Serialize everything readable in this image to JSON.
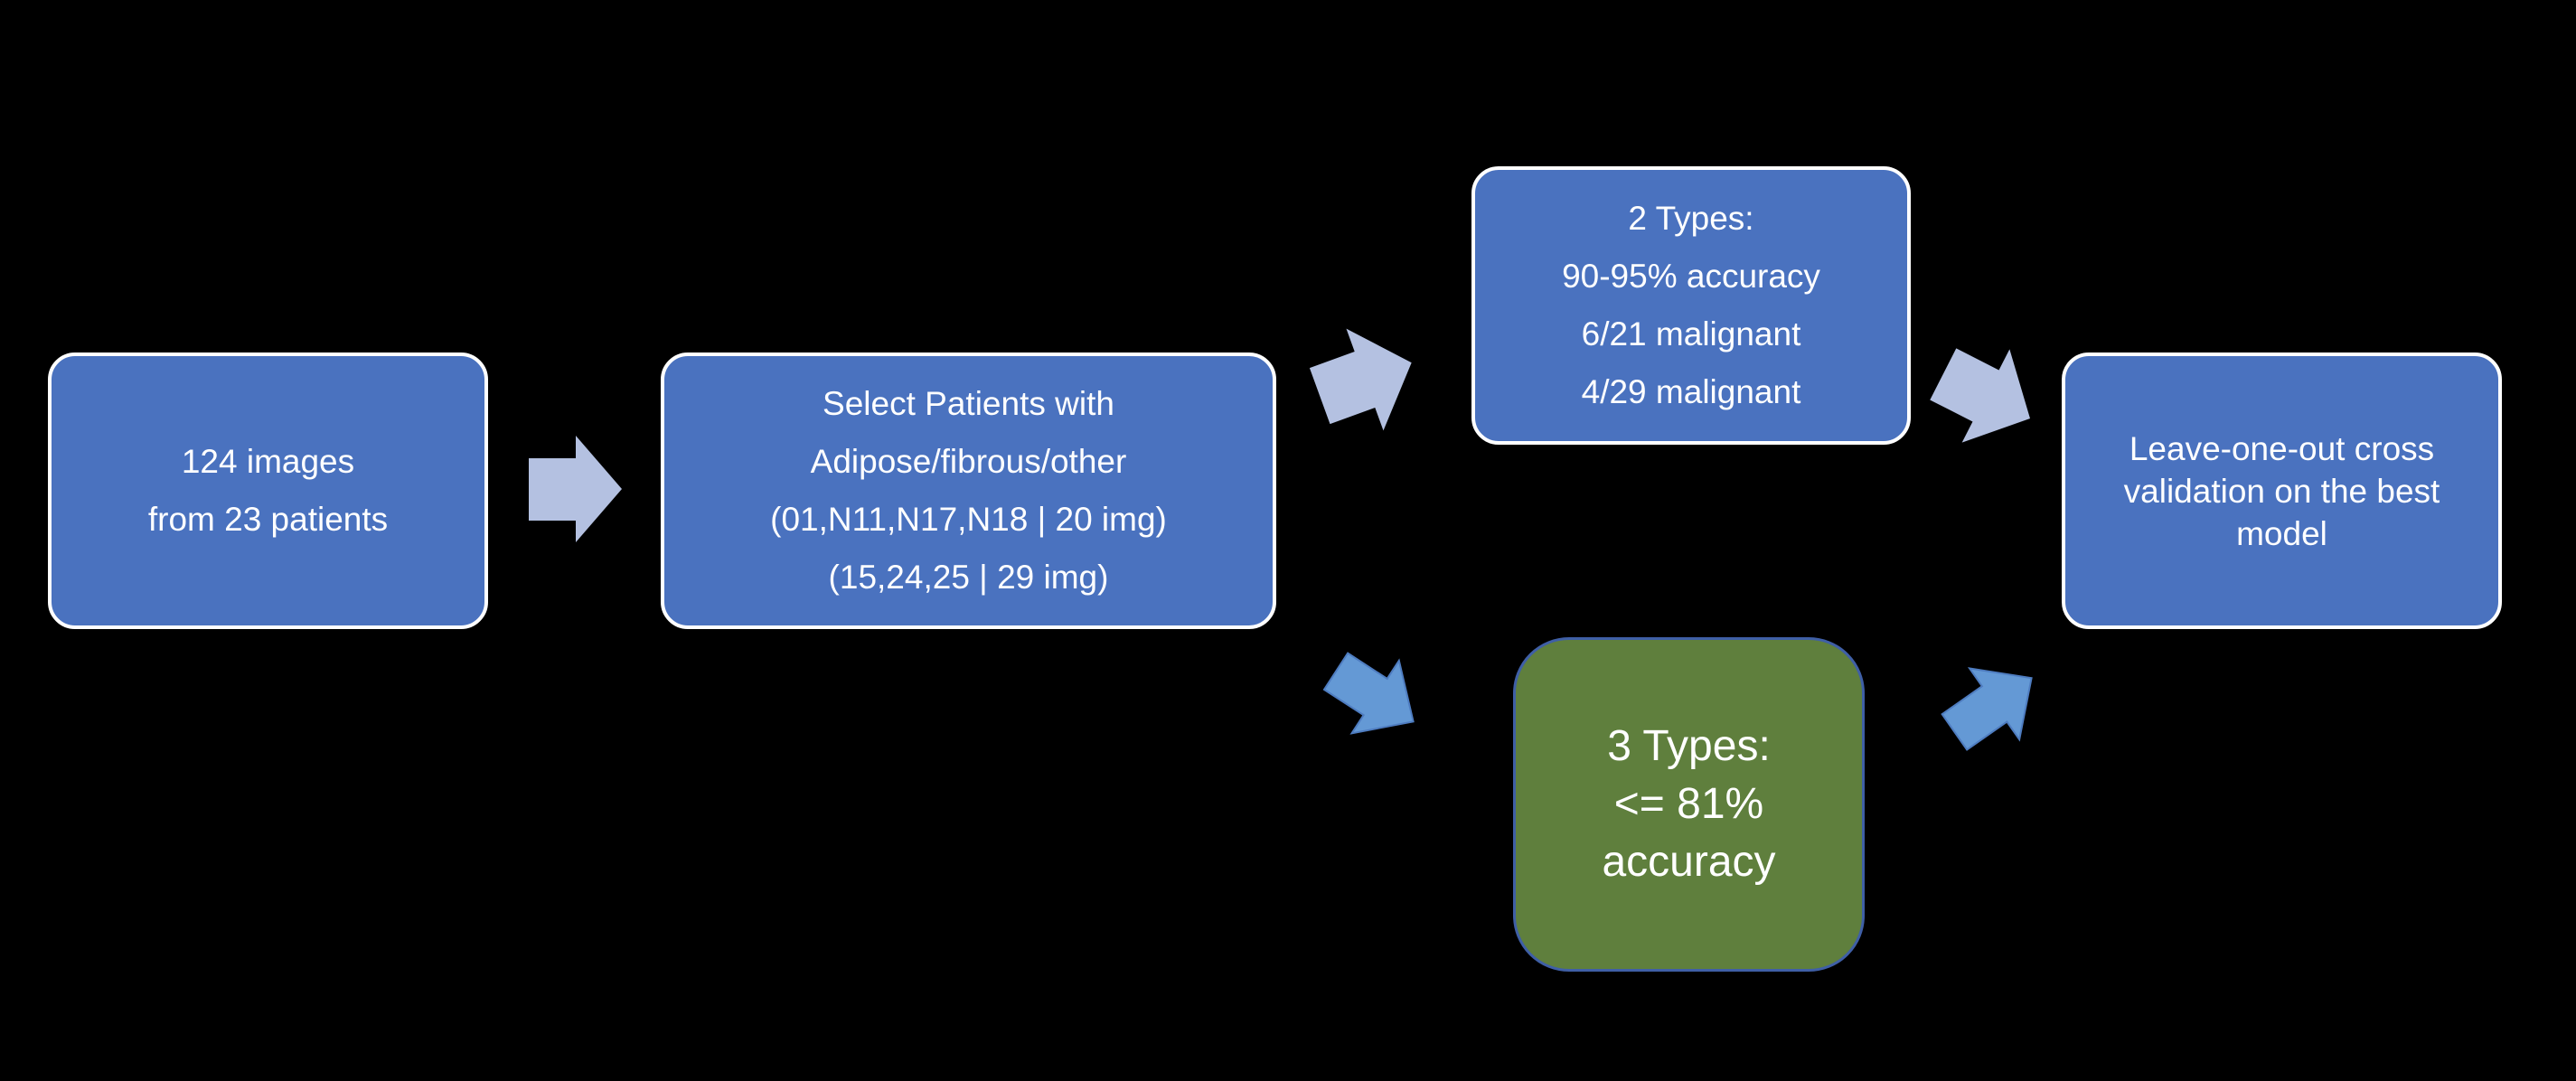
{
  "colors": {
    "background": "#000000",
    "box_fill": "#4a72bf",
    "box_border": "#ffffff",
    "green_fill": "#5f7f3d",
    "light_arrow": "#b4c1e1",
    "blue_arrow": "#6499d5"
  },
  "boxes": {
    "source": {
      "lines": [
        "124 images",
        "from 23 patients"
      ]
    },
    "select": {
      "lines": [
        "Select Patients with",
        "Adipose/fibrous/other",
        "(01,N11,N17,N18 | 20 img)",
        "(15,24,25 | 29 img)"
      ]
    },
    "two_types": {
      "lines": [
        "2 Types:",
        "90-95% accuracy",
        "6/21 malignant",
        "4/29 malignant"
      ]
    },
    "three_types": {
      "lines": [
        "3 Types:",
        "<= 81%",
        "accuracy"
      ]
    },
    "loo": {
      "text": "Leave-one-out cross validation on the best model"
    }
  }
}
